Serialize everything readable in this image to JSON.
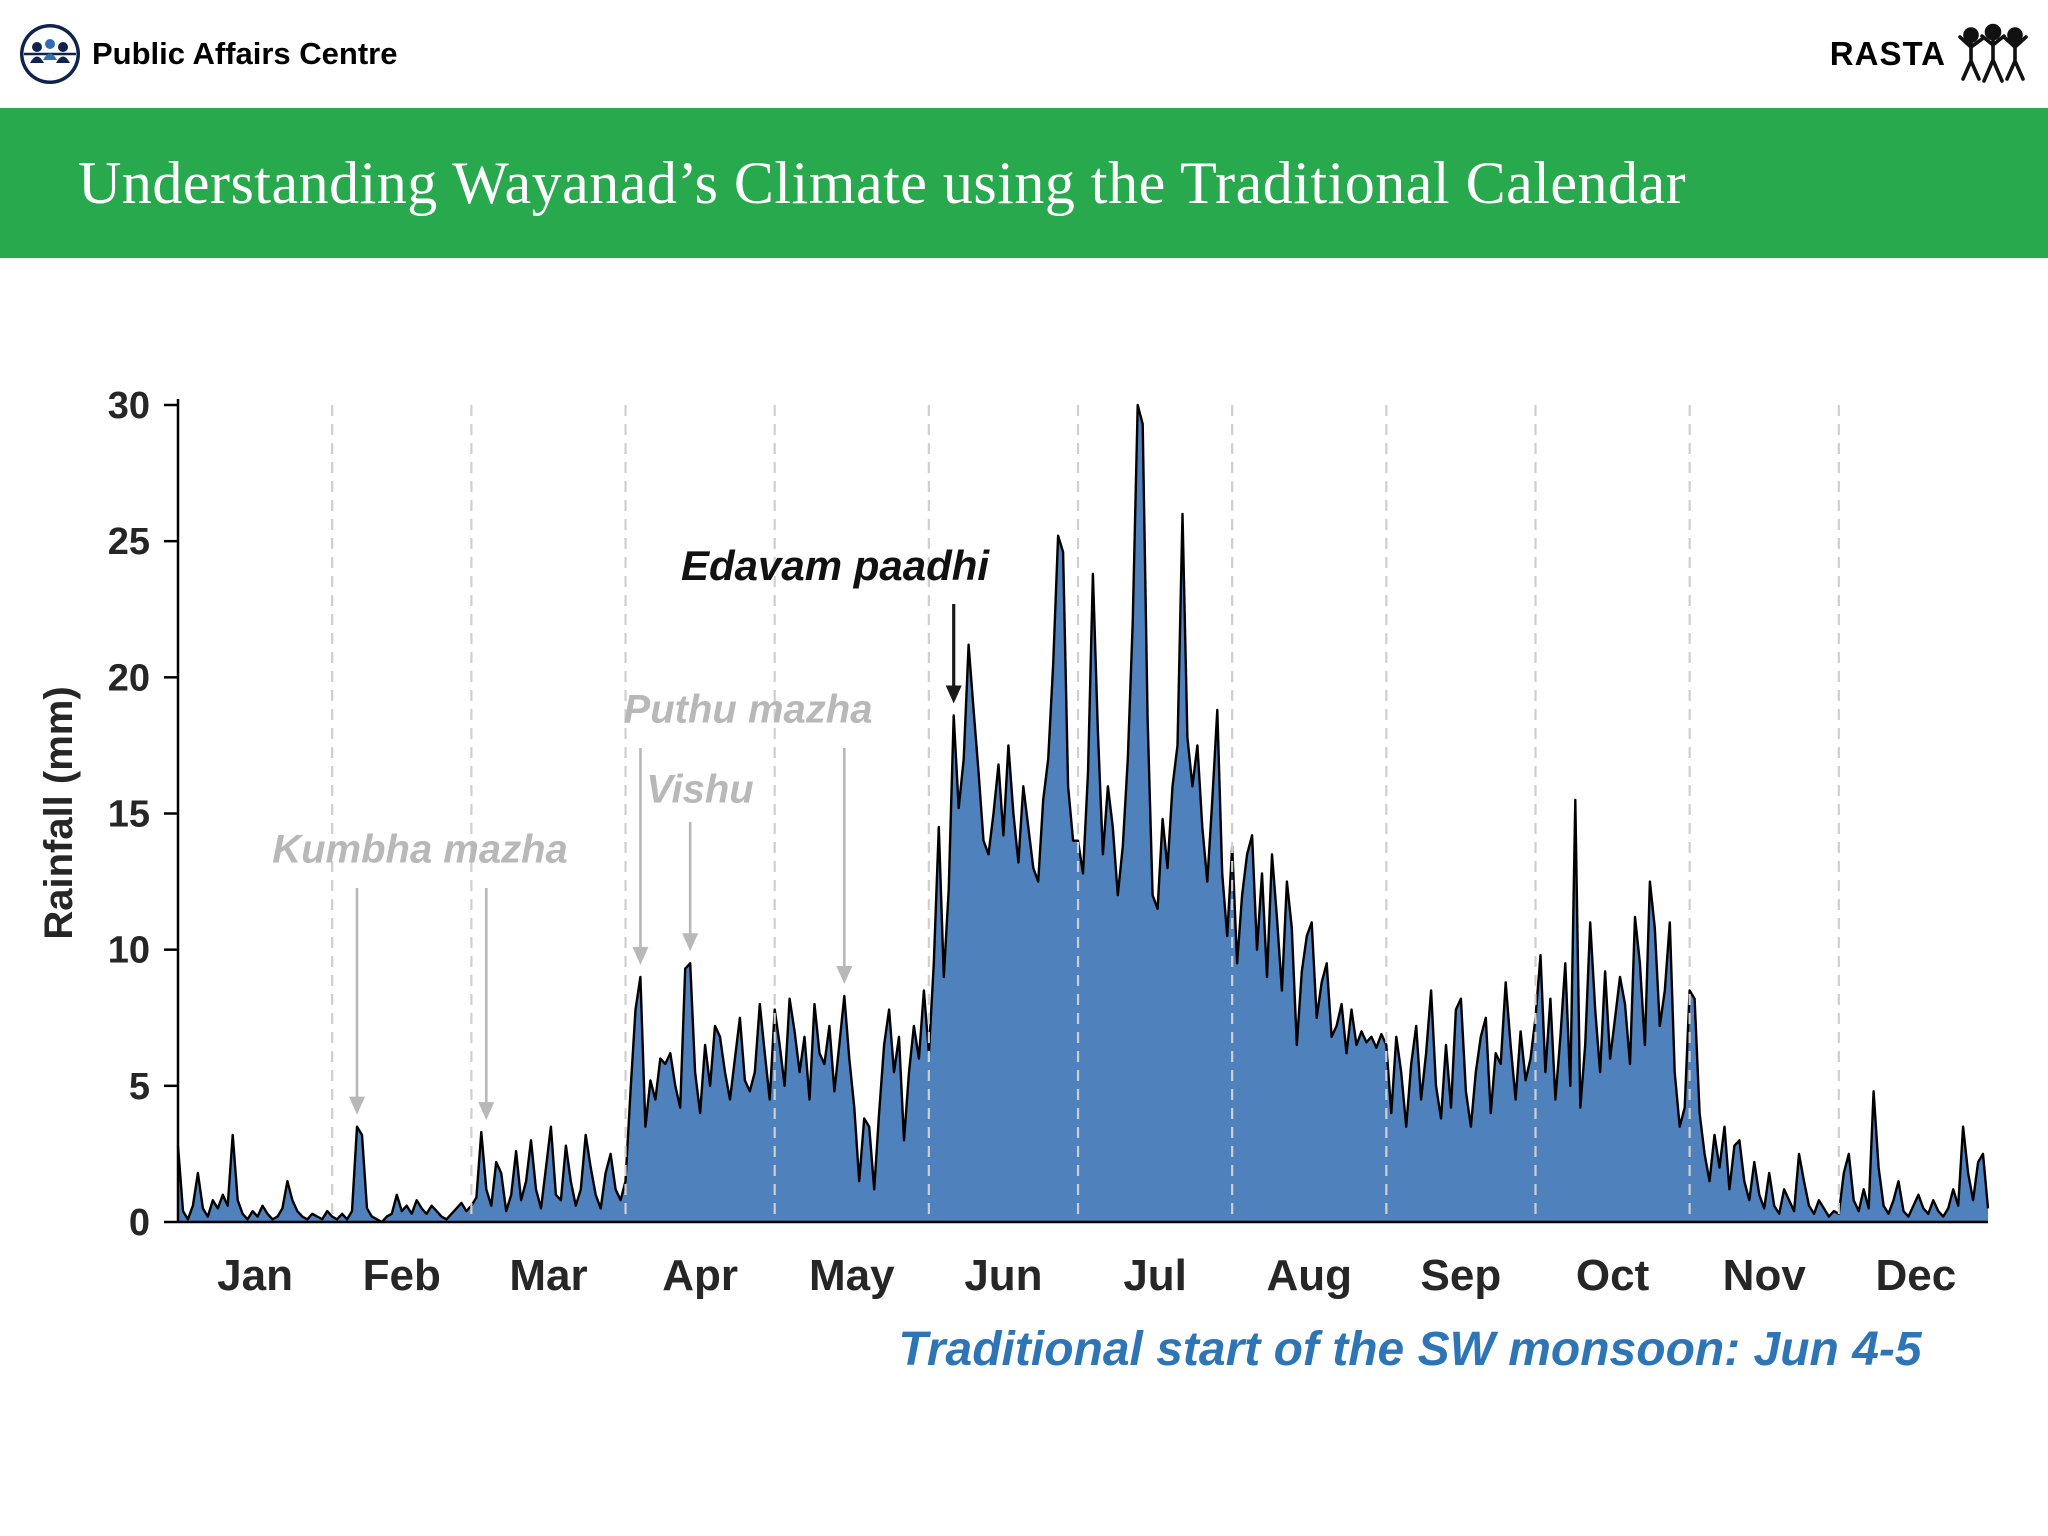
{
  "header": {
    "org_name": "Public Affairs Centre",
    "right_label": "RASTA"
  },
  "banner": {
    "title": "Understanding Wayanad’s Climate using the Traditional Calendar"
  },
  "caption": {
    "text": "Traditional start of the SW monsoon: Jun 4-5"
  },
  "colors": {
    "banner_green": "#29a94d",
    "caption_blue": "#2e75b6",
    "area_fill": "#4f81bd",
    "line": "#000000",
    "gridline": "#cfcfcf",
    "axis": "#000000",
    "annotation_gray": "#b8b8b8"
  },
  "chart_data": {
    "type": "area",
    "title": "",
    "xlabel": "",
    "ylabel": "Rainfall (mm)",
    "ylim": [
      0,
      30
    ],
    "yticks": [
      0,
      5,
      10,
      15,
      20,
      25,
      30
    ],
    "grid": "vertical-dashed-at-month-boundaries",
    "legend": "none",
    "x_unit": "day_of_year",
    "categories": [
      "Jan",
      "Feb",
      "Mar",
      "Apr",
      "May",
      "Jun",
      "Jul",
      "Aug",
      "Sep",
      "Oct",
      "Nov",
      "Dec"
    ],
    "month_days": [
      31,
      28,
      31,
      30,
      31,
      30,
      31,
      31,
      30,
      31,
      30,
      31
    ],
    "series": [
      {
        "name": "Rainfall (mm)",
        "values": [
          2.8,
          0.4,
          0.1,
          0.6,
          1.8,
          0.5,
          0.2,
          0.8,
          0.5,
          1.0,
          0.6,
          3.2,
          0.8,
          0.3,
          0.1,
          0.4,
          0.2,
          0.6,
          0.3,
          0.1,
          0.2,
          0.5,
          1.5,
          0.8,
          0.4,
          0.2,
          0.1,
          0.3,
          0.2,
          0.1,
          0.4,
          0.2,
          0.1,
          0.3,
          0.1,
          0.4,
          3.5,
          3.2,
          0.5,
          0.2,
          0.1,
          0.0,
          0.2,
          0.3,
          1.0,
          0.4,
          0.6,
          0.3,
          0.8,
          0.5,
          0.3,
          0.6,
          0.4,
          0.2,
          0.1,
          0.3,
          0.5,
          0.7,
          0.4,
          0.6,
          0.9,
          3.3,
          1.2,
          0.6,
          2.2,
          1.8,
          0.4,
          1.0,
          2.6,
          0.8,
          1.5,
          3.0,
          1.2,
          0.5,
          2.0,
          3.5,
          1.0,
          0.8,
          2.8,
          1.5,
          0.6,
          1.2,
          3.2,
          2.0,
          1.0,
          0.5,
          1.8,
          2.5,
          1.2,
          0.8,
          1.5,
          4.8,
          7.8,
          9.0,
          3.5,
          5.2,
          4.5,
          6.0,
          5.8,
          6.2,
          5.0,
          4.2,
          9.3,
          9.5,
          5.5,
          4.0,
          6.5,
          5.0,
          7.2,
          6.8,
          5.5,
          4.5,
          6.0,
          7.5,
          5.2,
          4.8,
          5.5,
          8.0,
          6.2,
          4.5,
          7.8,
          6.5,
          5.0,
          8.2,
          7.0,
          5.5,
          6.8,
          4.5,
          8.0,
          6.2,
          5.8,
          7.2,
          4.8,
          6.5,
          8.3,
          6.0,
          4.2,
          1.5,
          3.8,
          3.5,
          1.2,
          4.0,
          6.5,
          7.8,
          5.5,
          6.8,
          3.0,
          5.5,
          7.2,
          6.0,
          8.5,
          6.2,
          9.5,
          14.5,
          9.0,
          12.2,
          18.6,
          15.2,
          17.0,
          21.2,
          18.8,
          16.5,
          14.0,
          13.5,
          15.0,
          16.8,
          14.2,
          17.5,
          15.0,
          13.2,
          16.0,
          14.5,
          13.0,
          12.5,
          15.5,
          17.0,
          20.5,
          25.2,
          24.6,
          16.0,
          14.0,
          14.0,
          12.8,
          16.5,
          23.8,
          18.0,
          13.5,
          16.0,
          14.5,
          12.0,
          13.8,
          17.0,
          22.0,
          30.0,
          29.3,
          18.5,
          12.0,
          11.5,
          14.8,
          13.0,
          16.0,
          17.5,
          26.0,
          17.8,
          16.0,
          17.5,
          14.5,
          12.5,
          15.5,
          18.8,
          12.8,
          10.5,
          13.8,
          9.5,
          12.0,
          13.5,
          14.2,
          10.0,
          12.8,
          9.0,
          13.5,
          11.2,
          8.5,
          12.5,
          10.8,
          6.5,
          9.2,
          10.5,
          11.0,
          7.5,
          8.8,
          9.5,
          6.8,
          7.2,
          8.0,
          6.2,
          7.8,
          6.5,
          7.0,
          6.6,
          6.8,
          6.4,
          6.9,
          6.5,
          4.0,
          6.8,
          5.5,
          3.5,
          5.8,
          7.2,
          4.5,
          6.2,
          8.5,
          5.0,
          3.8,
          6.5,
          4.2,
          7.8,
          8.2,
          4.8,
          3.5,
          5.5,
          6.8,
          7.5,
          4.0,
          6.2,
          5.8,
          8.8,
          6.5,
          4.5,
          7.0,
          5.2,
          6.0,
          7.5,
          9.8,
          5.5,
          8.2,
          4.5,
          6.8,
          9.5,
          5.0,
          15.5,
          4.2,
          6.5,
          11.0,
          7.8,
          5.5,
          9.2,
          6.0,
          7.5,
          9.0,
          8.0,
          5.8,
          11.2,
          9.5,
          6.5,
          12.5,
          10.8,
          7.2,
          8.5,
          11.0,
          5.5,
          3.5,
          4.2,
          8.5,
          8.2,
          4.0,
          2.5,
          1.5,
          3.2,
          2.0,
          3.5,
          1.2,
          2.8,
          3.0,
          1.5,
          0.8,
          2.2,
          1.0,
          0.5,
          1.8,
          0.6,
          0.3,
          1.2,
          0.8,
          0.4,
          2.5,
          1.5,
          0.6,
          0.3,
          0.8,
          0.5,
          0.2,
          0.4,
          0.3,
          1.8,
          2.5,
          0.8,
          0.4,
          1.2,
          0.5,
          4.8,
          2.0,
          0.6,
          0.3,
          0.8,
          1.5,
          0.4,
          0.2,
          0.6,
          1.0,
          0.5,
          0.3,
          0.8,
          0.4,
          0.2,
          0.5,
          1.2,
          0.6,
          3.5,
          1.8,
          0.8,
          2.2,
          2.5,
          0.5
        ]
      }
    ],
    "annotations": [
      {
        "label": "Kumbha mazha",
        "color": "gray",
        "arrows": [
          {
            "day": 36,
            "mm": 3.5
          },
          {
            "day": 62,
            "mm": 3.3
          }
        ]
      },
      {
        "label": "Puthu mazha",
        "color": "gray",
        "arrows": [
          {
            "day": 93,
            "mm": 9.0
          },
          {
            "day": 134,
            "mm": 8.3
          }
        ]
      },
      {
        "label": "Vishu",
        "color": "gray",
        "arrows": [
          {
            "day": 103,
            "mm": 9.5
          }
        ]
      },
      {
        "label": "Edavam paadhi",
        "color": "black",
        "arrows": [
          {
            "day": 156,
            "mm": 18.6
          }
        ]
      }
    ]
  }
}
